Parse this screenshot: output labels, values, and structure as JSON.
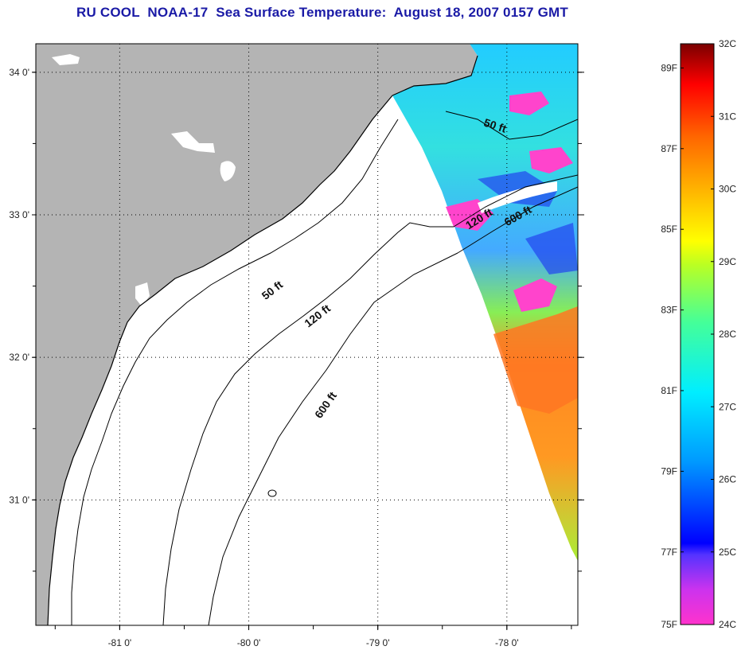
{
  "title": "RU COOL  NOAA-17  Sea Surface Temperature:  August 18, 2007 0157 GMT",
  "map": {
    "lon_range": [
      -81.65,
      -77.45
    ],
    "lat_range": [
      30.12,
      34.2
    ],
    "lon_ticks": [
      {
        "value": -81,
        "label": "-81 0'"
      },
      {
        "value": -80,
        "label": "-80 0'"
      },
      {
        "value": -79,
        "label": "-79 0'"
      },
      {
        "value": -78,
        "label": "-78 0'"
      }
    ],
    "lat_ticks": [
      {
        "value": 34,
        "label": "34 0'"
      },
      {
        "value": 33,
        "label": "33 0'"
      },
      {
        "value": 32,
        "label": "32 0'"
      },
      {
        "value": 31,
        "label": "31 0'"
      }
    ],
    "land_color": "#b4b4b4",
    "contours": [
      {
        "label": "50 ft",
        "label_lon": -79.8,
        "label_lat": 32.45
      },
      {
        "label": "120 ft",
        "label_lon": -79.45,
        "label_lat": 32.27
      },
      {
        "label": "600 ft",
        "label_lon": -79.38,
        "label_lat": 31.65
      },
      {
        "label": "50 ft",
        "label_lon": -78.1,
        "label_lat": 33.6
      },
      {
        "label": "120 ft",
        "label_lon": -78.2,
        "label_lat": 32.95
      },
      {
        "label": "600 ft",
        "label_lon": -77.9,
        "label_lat": 32.97
      }
    ]
  },
  "colorbar": {
    "stops": [
      "#ff44cc",
      "#cc44ee",
      "#0000ff",
      "#0099ff",
      "#00e8ff",
      "#33ff88",
      "#aaff22",
      "#ffff00",
      "#ffaa00",
      "#ff6600",
      "#ff0000",
      "#880000"
    ],
    "celsius_labels": [
      "32C",
      "31C",
      "30C",
      "29C",
      "28C",
      "27C",
      "26C",
      "25C",
      "24C"
    ],
    "fahrenheit_labels": [
      "89F",
      "87F",
      "85F",
      "83F",
      "81F",
      "79F",
      "77F",
      "75F"
    ],
    "celsius_range": [
      24,
      32
    ],
    "fahrenheit_values": [
      89,
      87,
      85,
      83,
      81,
      79,
      77,
      75
    ]
  }
}
